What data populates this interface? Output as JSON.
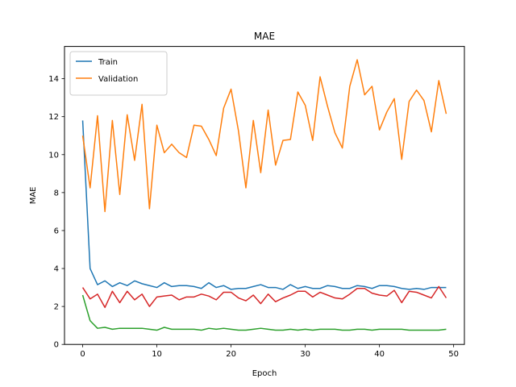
{
  "chart_data": {
    "type": "line",
    "title": "MAE",
    "xlabel": "Epoch",
    "ylabel": "MAE",
    "xlim": [
      -2.45,
      51.45
    ],
    "ylim": [
      0,
      15.7
    ],
    "xticks": [
      0,
      10,
      20,
      30,
      40,
      50
    ],
    "yticks": [
      0,
      2,
      4,
      6,
      8,
      10,
      12,
      14
    ],
    "grid": false,
    "legend_position": "top-left",
    "x": [
      0,
      1,
      2,
      3,
      4,
      5,
      6,
      7,
      8,
      9,
      10,
      11,
      12,
      13,
      14,
      15,
      16,
      17,
      18,
      19,
      20,
      21,
      22,
      23,
      24,
      25,
      26,
      27,
      28,
      29,
      30,
      31,
      32,
      33,
      34,
      35,
      36,
      37,
      38,
      39,
      40,
      41,
      42,
      43,
      44,
      45,
      46,
      47,
      48,
      49
    ],
    "series": [
      {
        "name": "Train",
        "color": "#1f77b4",
        "in_legend": true,
        "values": [
          11.8,
          4.0,
          3.15,
          3.35,
          3.05,
          3.25,
          3.1,
          3.35,
          3.2,
          3.1,
          3.0,
          3.25,
          3.05,
          3.1,
          3.1,
          3.05,
          2.95,
          3.25,
          3.0,
          3.1,
          2.9,
          2.95,
          2.95,
          3.05,
          3.15,
          3.0,
          3.0,
          2.9,
          3.15,
          2.95,
          3.05,
          2.95,
          2.95,
          3.1,
          3.05,
          2.95,
          2.95,
          3.1,
          3.05,
          2.95,
          3.1,
          3.1,
          3.05,
          2.95,
          2.9,
          2.95,
          2.9,
          3.0,
          3.0,
          3.0
        ]
      },
      {
        "name": "Validation",
        "color": "#ff7f0e",
        "in_legend": true,
        "values": [
          11.0,
          8.25,
          12.05,
          7.0,
          11.8,
          7.9,
          12.1,
          9.7,
          12.65,
          7.15,
          11.55,
          10.1,
          10.55,
          10.1,
          9.85,
          11.55,
          11.5,
          10.8,
          9.95,
          12.45,
          13.45,
          11.25,
          8.25,
          11.8,
          9.05,
          12.35,
          9.45,
          10.75,
          10.8,
          13.3,
          12.6,
          10.75,
          14.1,
          12.55,
          11.15,
          10.35,
          13.6,
          15.0,
          13.15,
          13.6,
          11.3,
          12.25,
          12.95,
          9.75,
          12.8,
          13.4,
          12.85,
          11.2,
          13.9,
          12.15
        ]
      },
      {
        "name": "",
        "color": "#2ca02c",
        "in_legend": false,
        "values": [
          2.6,
          1.25,
          0.85,
          0.9,
          0.8,
          0.85,
          0.85,
          0.85,
          0.85,
          0.8,
          0.75,
          0.9,
          0.8,
          0.8,
          0.8,
          0.8,
          0.75,
          0.85,
          0.8,
          0.85,
          0.8,
          0.75,
          0.75,
          0.8,
          0.85,
          0.8,
          0.75,
          0.75,
          0.8,
          0.75,
          0.8,
          0.75,
          0.8,
          0.8,
          0.8,
          0.75,
          0.75,
          0.8,
          0.8,
          0.75,
          0.8,
          0.8,
          0.8,
          0.8,
          0.75,
          0.75,
          0.75,
          0.75,
          0.75,
          0.8
        ]
      },
      {
        "name": "",
        "color": "#d62728",
        "in_legend": false,
        "values": [
          3.0,
          2.4,
          2.65,
          1.95,
          2.8,
          2.2,
          2.8,
          2.35,
          2.65,
          2.0,
          2.5,
          2.55,
          2.6,
          2.35,
          2.5,
          2.5,
          2.65,
          2.55,
          2.35,
          2.75,
          2.75,
          2.45,
          2.3,
          2.6,
          2.15,
          2.65,
          2.25,
          2.45,
          2.6,
          2.8,
          2.8,
          2.5,
          2.75,
          2.6,
          2.45,
          2.4,
          2.65,
          2.95,
          2.95,
          2.7,
          2.6,
          2.55,
          2.85,
          2.2,
          2.8,
          2.75,
          2.6,
          2.45,
          3.05,
          2.45
        ]
      }
    ]
  }
}
